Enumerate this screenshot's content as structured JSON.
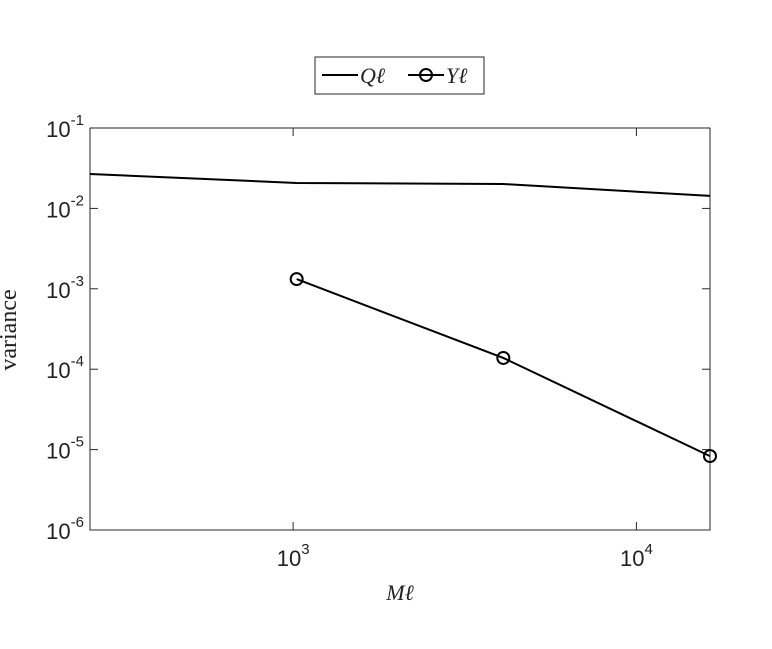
{
  "chart_data": {
    "type": "line",
    "x": [
      256,
      1024,
      4096,
      16384
    ],
    "series": [
      {
        "name": "Qℓ",
        "color": "#000000",
        "marker": "none",
        "values": [
          0.0268,
          0.0207,
          0.0201,
          0.0143
        ]
      },
      {
        "name": "Yℓ",
        "color": "#000000",
        "marker": "o",
        "values": [
          null,
          0.00132,
          0.000138,
          8.3e-06
        ]
      }
    ],
    "xlabel": "Mℓ",
    "ylabel": "variance",
    "xscale": "log",
    "yscale": "log",
    "xlim": [
      256,
      16384
    ],
    "ylim": [
      1e-06,
      0.1
    ],
    "xticks": [
      {
        "value": 1000,
        "label": "10",
        "exponent": "3"
      },
      {
        "value": 10000,
        "label": "10",
        "exponent": "4"
      }
    ],
    "yticks": [
      {
        "value": 1e-06,
        "label": "10",
        "exponent": "-6"
      },
      {
        "value": 1e-05,
        "label": "10",
        "exponent": "-5"
      },
      {
        "value": 0.0001,
        "label": "10",
        "exponent": "-4"
      },
      {
        "value": 0.001,
        "label": "10",
        "exponent": "-3"
      },
      {
        "value": 0.01,
        "label": "10",
        "exponent": "-2"
      },
      {
        "value": 0.1,
        "label": "10",
        "exponent": "-1"
      }
    ],
    "legend": "top",
    "grid": false
  }
}
